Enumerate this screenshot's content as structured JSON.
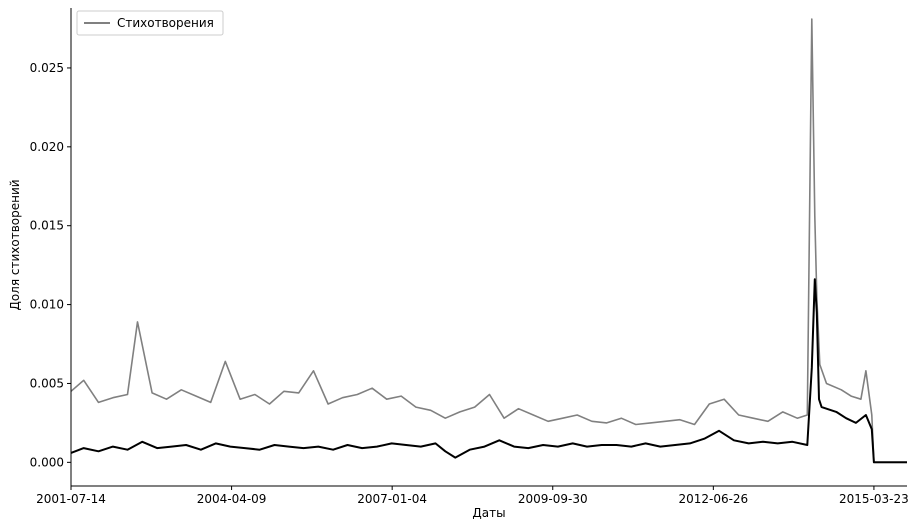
{
  "chart_data": {
    "type": "line",
    "title": "",
    "xlabel": "Даты",
    "ylabel": "Доля стихотворений",
    "x_ticks": [
      "2001-07-14",
      "2004-04-09",
      "2007-01-04",
      "2009-09-30",
      "2012-06-26",
      "2015-03-23"
    ],
    "x_range": [
      "2001-07-14",
      "2015-10-15"
    ],
    "y_ticks": [
      "0.000",
      "0.005",
      "0.010",
      "0.015",
      "0.020",
      "0.025"
    ],
    "ylim": [
      -0.0015,
      0.0288
    ],
    "grid": false,
    "legend": {
      "position": "top-left",
      "entries": [
        "Стихотворения"
      ]
    },
    "colors": {
      "raw_series": "#808080",
      "smoothed_series": "#000000",
      "axis": "#000000"
    },
    "series": [
      {
        "name": "Стихотворения",
        "style": "raw",
        "x": [
          "2001-07-14",
          "2001-10-01",
          "2002-01-01",
          "2002-04-01",
          "2002-07-01",
          "2002-09-01",
          "2002-12-01",
          "2003-03-01",
          "2003-06-01",
          "2003-09-01",
          "2003-12-01",
          "2004-03-01",
          "2004-06-01",
          "2004-09-01",
          "2004-12-01",
          "2005-03-01",
          "2005-06-01",
          "2005-09-01",
          "2005-12-01",
          "2006-03-01",
          "2006-06-01",
          "2006-09-01",
          "2006-12-01",
          "2007-03-01",
          "2007-06-01",
          "2007-09-01",
          "2007-12-01",
          "2008-03-01",
          "2008-06-01",
          "2008-09-01",
          "2008-12-01",
          "2009-03-01",
          "2009-06-01",
          "2009-09-01",
          "2009-12-01",
          "2010-03-01",
          "2010-06-01",
          "2010-09-01",
          "2010-12-01",
          "2011-03-01",
          "2011-06-01",
          "2011-09-01",
          "2011-12-01",
          "2012-03-01",
          "2012-06-01",
          "2012-09-01",
          "2012-12-01",
          "2013-03-01",
          "2013-06-01",
          "2013-09-01",
          "2013-12-01",
          "2014-02-01",
          "2014-03-01",
          "2014-03-20",
          "2014-04-01",
          "2014-04-20",
          "2014-06-01",
          "2014-09-01",
          "2014-11-01",
          "2015-01-01",
          "2015-02-01",
          "2015-03-10",
          "2015-03-23",
          "2015-06-01",
          "2015-10-15"
        ],
        "y": [
          0.0045,
          0.0052,
          0.0038,
          0.0041,
          0.0043,
          0.0089,
          0.0044,
          0.004,
          0.0046,
          0.0042,
          0.0038,
          0.0064,
          0.004,
          0.0043,
          0.0037,
          0.0045,
          0.0044,
          0.0058,
          0.0037,
          0.0041,
          0.0043,
          0.0047,
          0.004,
          0.0042,
          0.0035,
          0.0033,
          0.0028,
          0.0032,
          0.0035,
          0.0043,
          0.0028,
          0.0034,
          0.003,
          0.0026,
          0.0028,
          0.003,
          0.0026,
          0.0025,
          0.0028,
          0.0024,
          0.0025,
          0.0026,
          0.0027,
          0.0024,
          0.0037,
          0.004,
          0.003,
          0.0028,
          0.0026,
          0.0032,
          0.0028,
          0.003,
          0.0281,
          0.0156,
          0.0105,
          0.0062,
          0.005,
          0.0046,
          0.0042,
          0.004,
          0.0058,
          0.003,
          0.0,
          0.0,
          0.0
        ]
      },
      {
        "name": "",
        "style": "smoothed",
        "x": [
          "2001-07-14",
          "2001-10-01",
          "2002-01-01",
          "2002-04-01",
          "2002-07-01",
          "2002-10-01",
          "2003-01-01",
          "2003-04-01",
          "2003-07-01",
          "2003-10-01",
          "2004-01-01",
          "2004-04-01",
          "2004-07-01",
          "2004-10-01",
          "2005-01-01",
          "2005-04-01",
          "2005-07-01",
          "2005-10-01",
          "2006-01-01",
          "2006-04-01",
          "2006-07-01",
          "2006-10-01",
          "2007-01-01",
          "2007-04-01",
          "2007-07-01",
          "2007-10-01",
          "2007-12-01",
          "2008-02-01",
          "2008-05-01",
          "2008-08-01",
          "2008-11-01",
          "2009-02-01",
          "2009-05-01",
          "2009-08-01",
          "2009-11-01",
          "2010-02-01",
          "2010-05-01",
          "2010-08-01",
          "2010-11-01",
          "2011-02-01",
          "2011-05-01",
          "2011-08-01",
          "2011-11-01",
          "2012-02-01",
          "2012-05-01",
          "2012-08-01",
          "2012-11-01",
          "2013-02-01",
          "2013-05-01",
          "2013-08-01",
          "2013-11-01",
          "2014-02-01",
          "2014-03-01",
          "2014-03-20",
          "2014-04-01",
          "2014-04-15",
          "2014-05-01",
          "2014-06-01",
          "2014-08-01",
          "2014-10-01",
          "2014-12-01",
          "2015-02-01",
          "2015-03-10",
          "2015-03-23",
          "2015-06-01",
          "2015-10-15"
        ],
        "y": [
          0.0006,
          0.0009,
          0.0007,
          0.001,
          0.0008,
          0.0013,
          0.0009,
          0.001,
          0.0011,
          0.0008,
          0.0012,
          0.001,
          0.0009,
          0.0008,
          0.0011,
          0.001,
          0.0009,
          0.001,
          0.0008,
          0.0011,
          0.0009,
          0.001,
          0.0012,
          0.0011,
          0.001,
          0.0012,
          0.0007,
          0.0003,
          0.0008,
          0.001,
          0.0014,
          0.001,
          0.0009,
          0.0011,
          0.001,
          0.0012,
          0.001,
          0.0011,
          0.0011,
          0.001,
          0.0012,
          0.001,
          0.0011,
          0.0012,
          0.0015,
          0.002,
          0.0014,
          0.0012,
          0.0013,
          0.0012,
          0.0013,
          0.0011,
          0.006,
          0.0116,
          0.0095,
          0.004,
          0.0035,
          0.0034,
          0.0032,
          0.0028,
          0.0025,
          0.003,
          0.0021,
          0.0,
          0.0,
          0.0
        ]
      }
    ]
  }
}
